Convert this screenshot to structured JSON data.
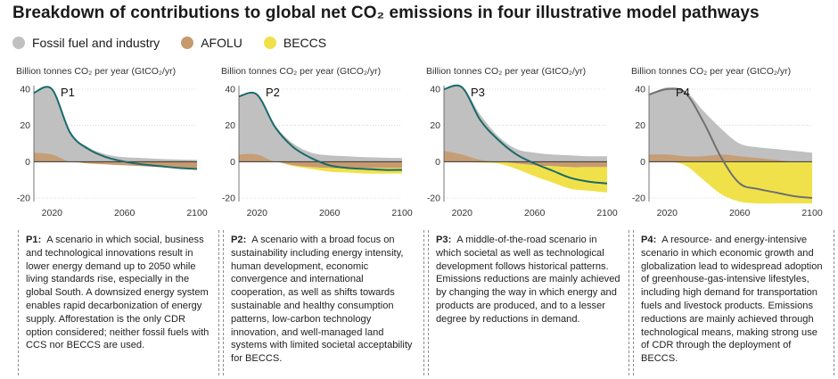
{
  "title": "Breakdown of contributions to global net CO₂ emissions in four illustrative model pathways",
  "legend": [
    {
      "label": "Fossil fuel and industry",
      "color": "#c0c0c0"
    },
    {
      "label": "AFOLU",
      "color": "#c79a6e"
    },
    {
      "label": "BECCS",
      "color": "#f0e14a"
    }
  ],
  "colors": {
    "fossil": "#c0c0c0",
    "afolu": "#c79a6e",
    "beccs": "#f0e14a",
    "net_line": "#1b6a6b",
    "net_line_p4": "#707070",
    "axis": "#555555",
    "grid": "#bdbdbd"
  },
  "chart_data": [
    {
      "type": "area",
      "panel": "P1",
      "ylabel": "Billion tonnes CO₂ per year (GtCO₂/yr)",
      "x": [
        2010,
        2020,
        2030,
        2040,
        2050,
        2060,
        2070,
        2080,
        2090,
        2100
      ],
      "xlim": [
        2010,
        2100
      ],
      "ylim": [
        -20,
        40
      ],
      "xticks": [
        "2020",
        "2060",
        "2100"
      ],
      "xtick_values": [
        2020,
        2060,
        2100
      ],
      "yticks": [
        "40",
        "20",
        "0",
        "-20"
      ],
      "ytick_values": [
        40,
        20,
        0,
        -20
      ],
      "series": [
        {
          "name": "Fossil fuel and industry",
          "values": [
            38,
            40,
            16,
            8,
            4,
            2.5,
            2,
            1.5,
            1.2,
            1
          ]
        },
        {
          "name": "AFOLU",
          "values": [
            5,
            4,
            0,
            -1,
            -1.5,
            -2,
            -2.5,
            -3,
            -3.5,
            -4
          ]
        },
        {
          "name": "BECCS",
          "values": [
            0,
            0,
            0,
            0,
            0,
            0,
            0,
            0,
            0,
            0
          ]
        },
        {
          "name": "Net CO2 emissions",
          "values": [
            38,
            40,
            16,
            7,
            2.5,
            0,
            -1.5,
            -2.5,
            -3.5,
            -4
          ]
        }
      ]
    },
    {
      "type": "area",
      "panel": "P2",
      "ylabel": "Billion tonnes CO₂ per year (GtCO₂/yr)",
      "x": [
        2010,
        2020,
        2030,
        2040,
        2050,
        2060,
        2070,
        2080,
        2090,
        2100
      ],
      "xlim": [
        2010,
        2100
      ],
      "ylim": [
        -20,
        40
      ],
      "xticks": [
        "2020",
        "2060",
        "2100"
      ],
      "xtick_values": [
        2020,
        2060,
        2100
      ],
      "yticks": [
        "40",
        "20",
        "0",
        "-20"
      ],
      "ytick_values": [
        40,
        20,
        0,
        -20
      ],
      "series": [
        {
          "name": "Fossil fuel and industry",
          "values": [
            36,
            37,
            20,
            10,
            5,
            3.5,
            3,
            2.5,
            2.2,
            2
          ]
        },
        {
          "name": "AFOLU",
          "values": [
            4,
            4,
            0,
            -2,
            -3,
            -3.5,
            -3.5,
            -3.5,
            -3.5,
            -3.5
          ]
        },
        {
          "name": "BECCS",
          "values": [
            0,
            0,
            0,
            -0.5,
            -1,
            -2,
            -2.5,
            -3,
            -3,
            -3
          ]
        },
        {
          "name": "Net CO2 emissions",
          "values": [
            36,
            37,
            19,
            8,
            2,
            -2,
            -3.5,
            -4,
            -4.5,
            -4.5
          ]
        }
      ]
    },
    {
      "type": "area",
      "panel": "P3",
      "ylabel": "Billion tonnes CO₂ per year (GtCO₂/yr)",
      "x": [
        2010,
        2020,
        2030,
        2040,
        2050,
        2060,
        2070,
        2080,
        2090,
        2100
      ],
      "xlim": [
        2010,
        2100
      ],
      "ylim": [
        -20,
        40
      ],
      "xticks": [
        "2020",
        "2060",
        "2100"
      ],
      "xtick_values": [
        2020,
        2060,
        2100
      ],
      "yticks": [
        "40",
        "20",
        "0",
        "-20"
      ],
      "ytick_values": [
        40,
        20,
        0,
        -20
      ],
      "series": [
        {
          "name": "Fossil fuel and industry",
          "values": [
            40,
            41,
            26,
            14,
            7,
            5,
            4,
            3.5,
            3,
            3
          ]
        },
        {
          "name": "AFOLU",
          "values": [
            6,
            4,
            1,
            0,
            -1,
            -2,
            -2.5,
            -3,
            -3,
            -3
          ]
        },
        {
          "name": "BECCS",
          "values": [
            0,
            0,
            -0.5,
            -1,
            -3,
            -6,
            -9,
            -12,
            -13,
            -14
          ]
        },
        {
          "name": "Net CO2 emissions",
          "values": [
            40,
            41,
            23,
            12,
            4,
            -1,
            -5,
            -9,
            -11,
            -12
          ]
        }
      ]
    },
    {
      "type": "area",
      "panel": "P4",
      "ylabel": "Billion tonnes CO₂ per year (GtCO₂/yr)",
      "x": [
        2010,
        2020,
        2030,
        2040,
        2050,
        2060,
        2070,
        2080,
        2090,
        2100
      ],
      "xlim": [
        2010,
        2100
      ],
      "ylim": [
        -20,
        40
      ],
      "xticks": [
        "2020",
        "2060",
        "2100"
      ],
      "xtick_values": [
        2020,
        2060,
        2100
      ],
      "yticks": [
        "40",
        "20",
        "0",
        "-20"
      ],
      "ytick_values": [
        40,
        20,
        0,
        -20
      ],
      "series": [
        {
          "name": "Fossil fuel and industry",
          "values": [
            37,
            41,
            39,
            28,
            18,
            10,
            8,
            7,
            6,
            5
          ]
        },
        {
          "name": "AFOLU",
          "values": [
            4,
            4,
            3,
            3,
            4,
            3,
            2,
            1,
            0,
            0
          ]
        },
        {
          "name": "BECCS",
          "values": [
            0,
            0,
            -2,
            -10,
            -18,
            -22,
            -23,
            -23,
            -23,
            -23
          ]
        },
        {
          "name": "Net CO2 emissions",
          "values": [
            37,
            40,
            38,
            22,
            2,
            -12,
            -15,
            -17,
            -19,
            -20
          ]
        }
      ]
    }
  ],
  "descriptions": [
    {
      "label": "P1:",
      "text": "A scenario in which social, business and technological innovations result in lower energy demand up to 2050 while living standards rise, especially in the global South. A downsized energy system enables rapid decarbonization of energy supply. Afforestation is the only CDR option considered; neither fossil fuels with CCS nor BECCS are used."
    },
    {
      "label": "P2:",
      "text": "A scenario with a broad focus on sustainability including energy intensity, human development, economic convergence and international cooperation, as well as shifts towards sustainable and healthy consumption patterns, low-carbon technology innovation, and well-managed land systems with limited societal acceptability for BECCS."
    },
    {
      "label": "P3:",
      "text": "A middle-of-the-road scenario in which societal as well as technological development follows historical patterns. Emissions reductions are mainly achieved by changing the way in which energy and products are produced, and to a lesser degree by reductions in demand."
    },
    {
      "label": "P4:",
      "text": "A resource- and energy-intensive scenario in which economic growth and globalization lead to widespread adoption of greenhouse-gas-intensive lifestyles, including high demand for transportation fuels and livestock products. Emissions reductions are mainly achieved through technological means, making strong use of CDR through the deployment of BECCS."
    }
  ]
}
